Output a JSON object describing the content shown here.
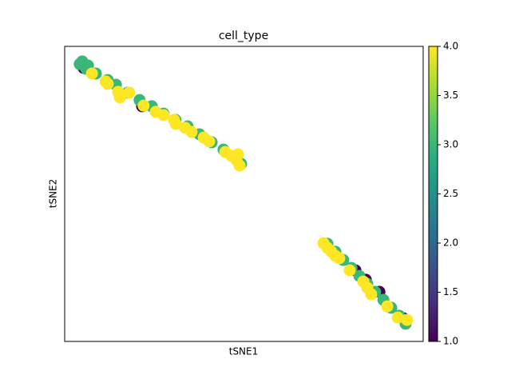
{
  "chart_data": {
    "type": "scatter",
    "title": "cell_type",
    "xlabel": "tSNE1",
    "ylabel": "tSNE2",
    "xlim": [
      0,
      100
    ],
    "ylim": [
      0,
      100
    ],
    "colormap": "viridis",
    "x": [
      5.3,
      21.6,
      81.1,
      84.0,
      87.8,
      94.4,
      4.9,
      6.5,
      8.7,
      12.0,
      14.3,
      17.6,
      20.9,
      24.3,
      27.6,
      30.9,
      34.3,
      37.6,
      41.0,
      44.3,
      47.7,
      49.2,
      4.2,
      6.0,
      73.3,
      75.5,
      77.7,
      80.0,
      82.2,
      84.4,
      86.6,
      88.9,
      91.1,
      93.3,
      95.1,
      7.6,
      11.4,
      12.0,
      14.9,
      15.4,
      18.0,
      22.0,
      25.4,
      27.6,
      30.5,
      31.0,
      33.6,
      35.4,
      38.8,
      40.3,
      44.8,
      46.5,
      47.9,
      48.8,
      48.3,
      72.2,
      73.3,
      74.4,
      75.5,
      76.6,
      79.5,
      83.3,
      84.4,
      85.5,
      90.0,
      92.9,
      95.5
    ],
    "y": [
      92.7,
      79.7,
      24.1,
      20.9,
      16.8,
      7.9,
      94.9,
      93.5,
      90.8,
      88.6,
      87.0,
      84.3,
      81.8,
      79.7,
      77.2,
      75.1,
      72.9,
      70.2,
      67.5,
      65.0,
      62.3,
      60.2,
      94.0,
      92.4,
      33.1,
      30.4,
      27.6,
      24.9,
      22.2,
      19.5,
      16.8,
      14.1,
      11.4,
      8.7,
      6.0,
      90.8,
      88.1,
      87.3,
      84.6,
      82.7,
      84.3,
      79.9,
      77.8,
      76.7,
      75.1,
      73.7,
      72.4,
      71.0,
      69.1,
      67.8,
      64.2,
      62.9,
      61.5,
      59.6,
      63.4,
      33.3,
      31.7,
      30.4,
      29.0,
      28.2,
      24.1,
      20.3,
      18.2,
      16.0,
      11.9,
      8.1,
      7.3
    ],
    "values": [
      1,
      1,
      1,
      1,
      1,
      1,
      3,
      3,
      3,
      3,
      3,
      3,
      3,
      3,
      3,
      3,
      3,
      3,
      3,
      3,
      3,
      3,
      3,
      3,
      3,
      3,
      3,
      3,
      3,
      3,
      3,
      3,
      3,
      3,
      3,
      4,
      4,
      4,
      4,
      4,
      4,
      4,
      4,
      4,
      4,
      4,
      4,
      4,
      4,
      4,
      4,
      4,
      4,
      4,
      4,
      4,
      4,
      4,
      4,
      4,
      4,
      4,
      4,
      4,
      4,
      4,
      4
    ],
    "clim": [
      1,
      4
    ],
    "cticks": [
      {
        "value": 1,
        "label": "1.0"
      },
      1.5,
      {
        "value": 2,
        "label": "2.0"
      },
      2.5,
      {
        "value": 3,
        "label": "3.0"
      },
      3.5,
      {
        "value": 4,
        "label": "4.0"
      }
    ]
  }
}
